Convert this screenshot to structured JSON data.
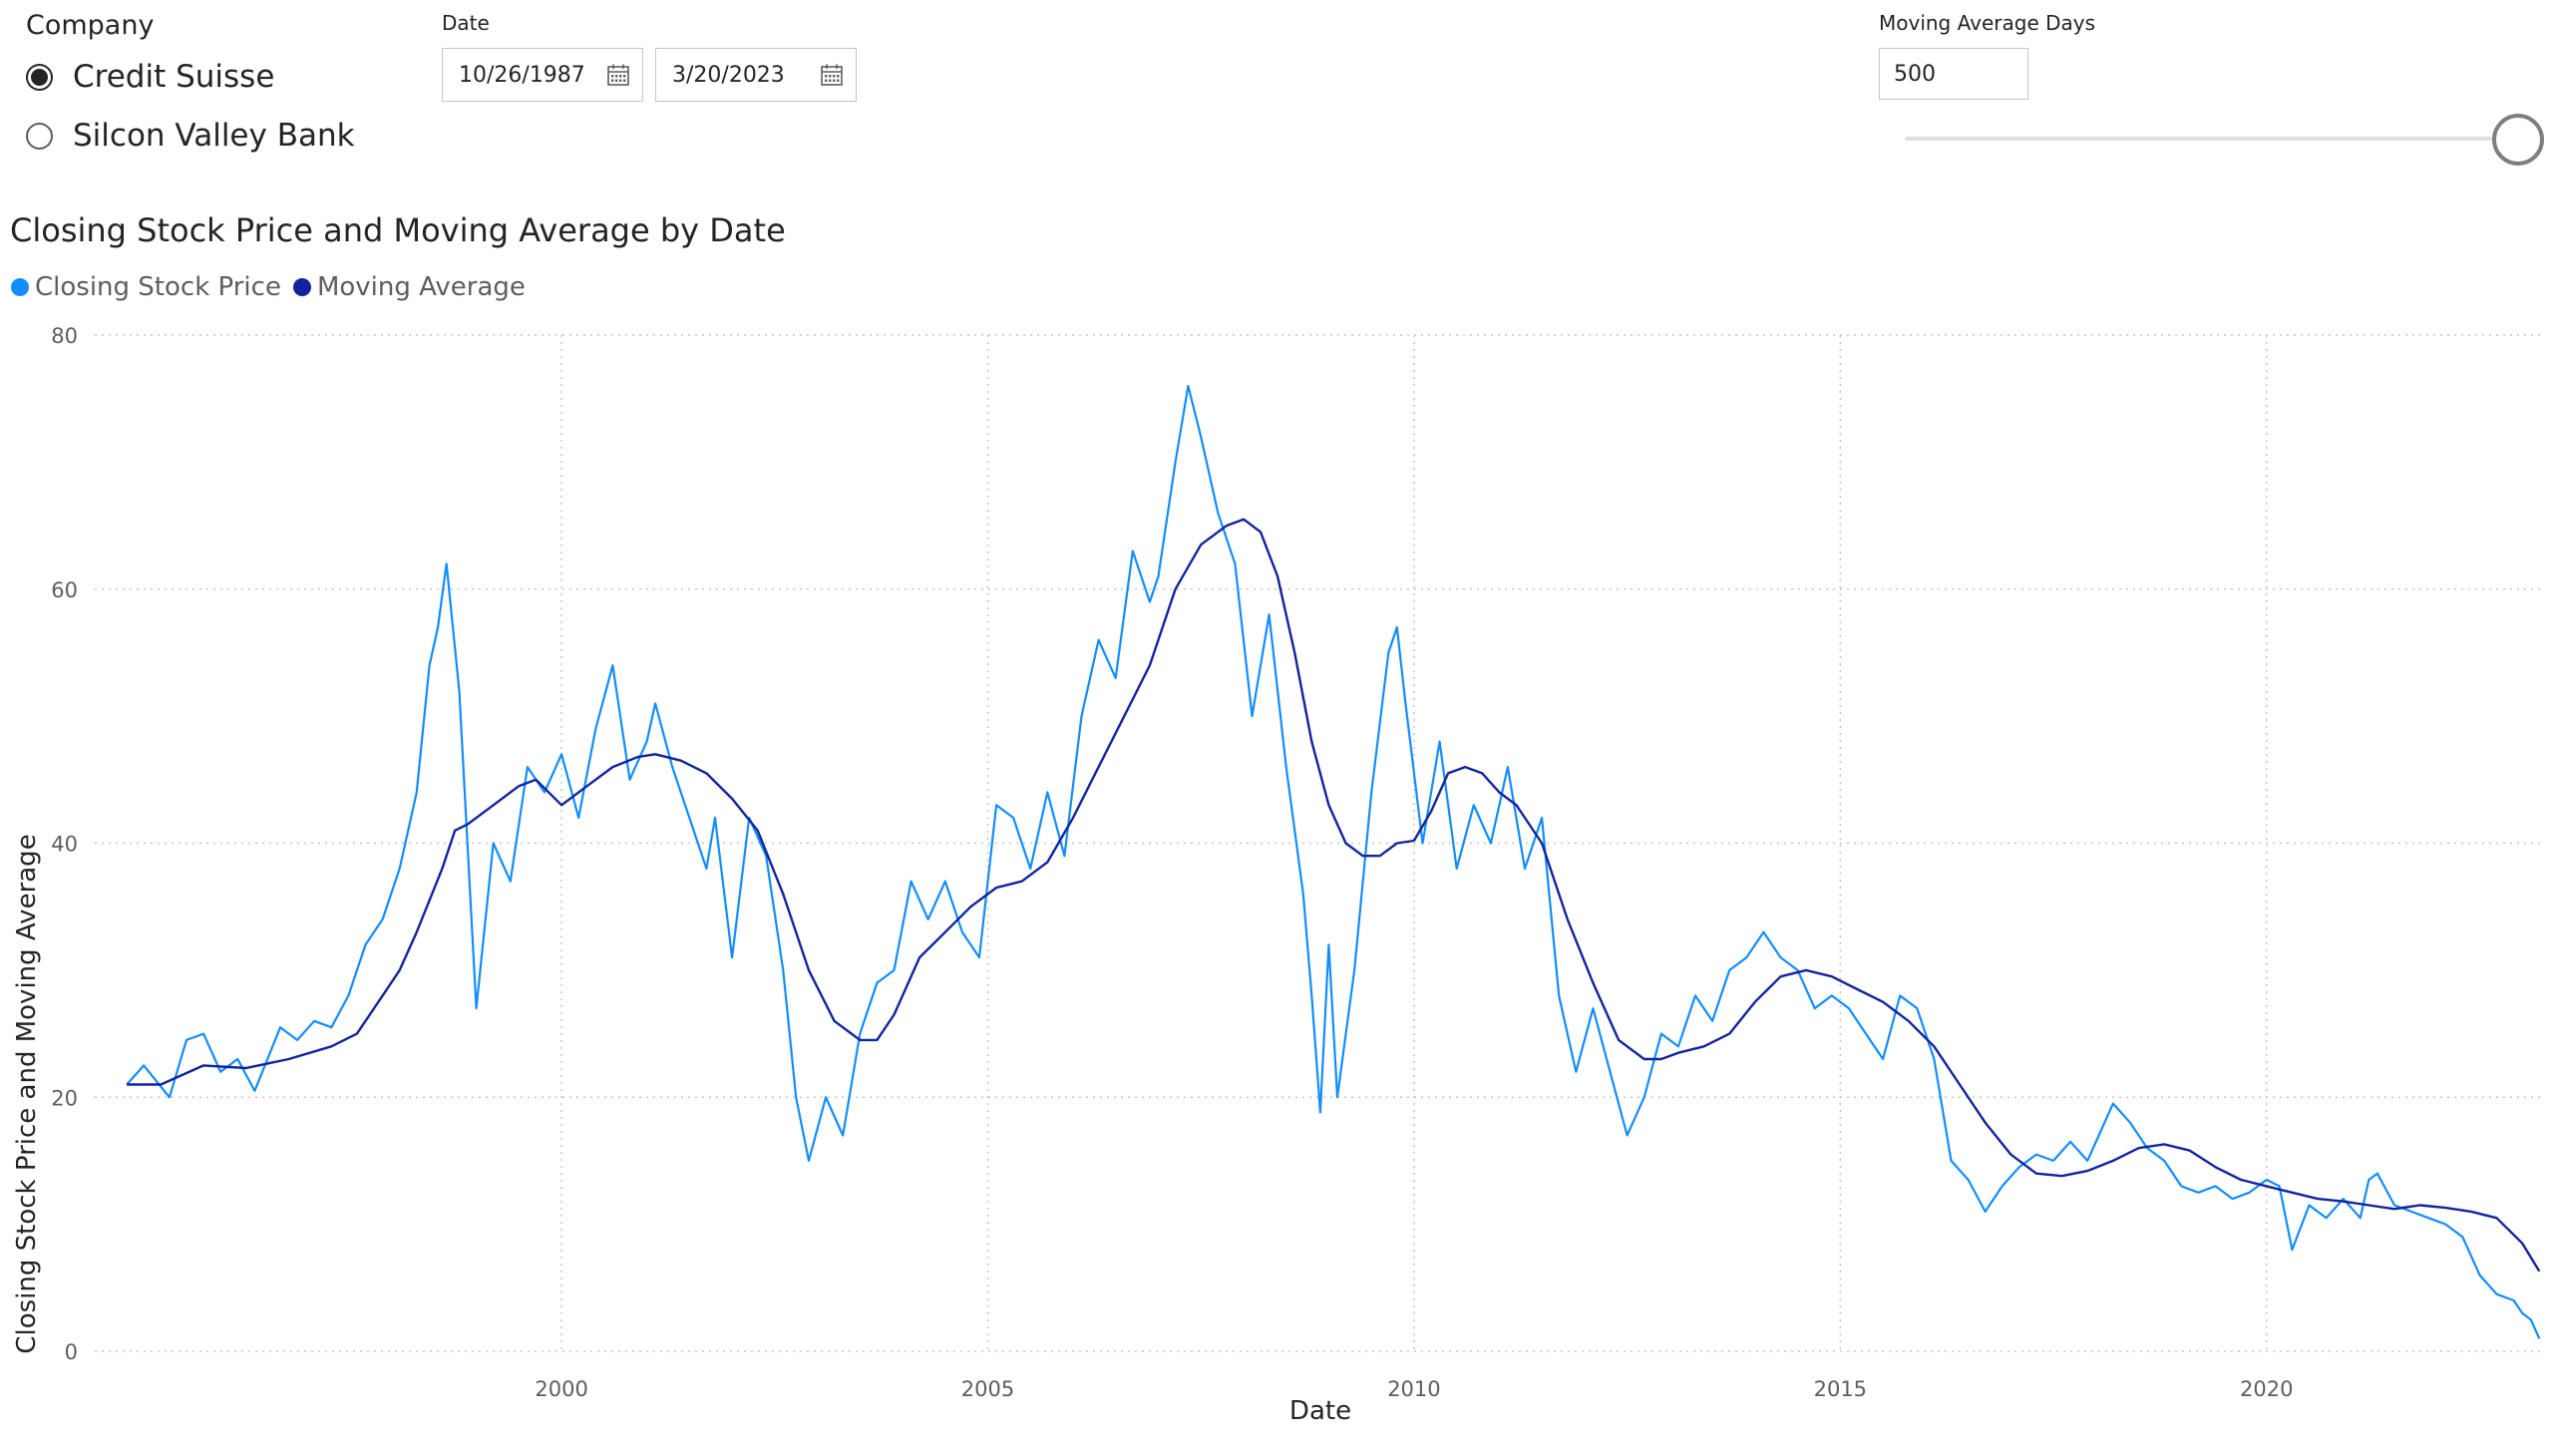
{
  "company_slicer": {
    "title": "Company",
    "options": [
      {
        "label": "Credit Suisse",
        "selected": true
      },
      {
        "label": "Silcon Valley Bank",
        "selected": false
      }
    ]
  },
  "date_slicer": {
    "title": "Date",
    "start": "10/26/1987",
    "end": "3/20/2023",
    "icon": "calendar-icon"
  },
  "moving_average_slicer": {
    "title": "Moving Average Days",
    "value": "500",
    "slider_position": 1.0
  },
  "chart_data": {
    "type": "line",
    "title": "Closing Stock Price and Moving Average by Date",
    "xlabel": "Date",
    "ylabel": "Closing Stock Price and Moving Average",
    "xlim": [
      1994.84,
      2023.22
    ],
    "ylim": [
      0,
      80
    ],
    "x_ticks": [
      2000,
      2005,
      2010,
      2015,
      2020
    ],
    "y_ticks": [
      0,
      20,
      40,
      60,
      80
    ],
    "grid": true,
    "legend_position": "top-left",
    "series": [
      {
        "name": "Closing Stock Price",
        "color": "#118DFF",
        "x": [
          1994.9,
          1995.1,
          1995.4,
          1995.6,
          1995.8,
          1996.0,
          1996.2,
          1996.4,
          1996.7,
          1996.9,
          1997.1,
          1997.3,
          1997.5,
          1997.7,
          1997.9,
          1998.1,
          1998.3,
          1998.45,
          1998.55,
          1998.65,
          1998.8,
          1999.0,
          1999.2,
          1999.4,
          1999.6,
          1999.8,
          2000.0,
          2000.2,
          2000.4,
          2000.6,
          2000.8,
          2001.0,
          2001.1,
          2001.3,
          2001.5,
          2001.7,
          2001.8,
          2002.0,
          2002.2,
          2002.4,
          2002.6,
          2002.75,
          2002.9,
          2003.1,
          2003.3,
          2003.5,
          2003.7,
          2003.9,
          2004.1,
          2004.3,
          2004.5,
          2004.7,
          2004.9,
          2005.1,
          2005.3,
          2005.5,
          2005.7,
          2005.9,
          2006.1,
          2006.3,
          2006.5,
          2006.7,
          2006.9,
          2007.0,
          2007.2,
          2007.35,
          2007.5,
          2007.7,
          2007.9,
          2008.1,
          2008.3,
          2008.5,
          2008.7,
          2008.8,
          2008.9,
          2009.0,
          2009.1,
          2009.3,
          2009.5,
          2009.7,
          2009.8,
          2009.9,
          2010.1,
          2010.3,
          2010.5,
          2010.7,
          2010.9,
          2011.1,
          2011.3,
          2011.5,
          2011.7,
          2011.9,
          2012.1,
          2012.3,
          2012.5,
          2012.7,
          2012.9,
          2013.1,
          2013.3,
          2013.5,
          2013.7,
          2013.9,
          2014.1,
          2014.3,
          2014.5,
          2014.7,
          2014.9,
          2015.1,
          2015.3,
          2015.5,
          2015.7,
          2015.9,
          2016.1,
          2016.3,
          2016.5,
          2016.7,
          2016.9,
          2017.1,
          2017.3,
          2017.5,
          2017.7,
          2017.9,
          2018.0,
          2018.2,
          2018.4,
          2018.6,
          2018.8,
          2019.0,
          2019.2,
          2019.4,
          2019.6,
          2019.8,
          2020.0,
          2020.15,
          2020.3,
          2020.5,
          2020.7,
          2020.9,
          2021.1,
          2021.2,
          2021.3,
          2021.5,
          2021.7,
          2021.9,
          2022.1,
          2022.3,
          2022.5,
          2022.7,
          2022.9,
          2023.0,
          2023.1,
          2023.2
        ],
        "y": [
          21.0,
          22.5,
          20.0,
          24.5,
          25.0,
          22.0,
          23.0,
          20.5,
          25.5,
          24.5,
          26.0,
          25.5,
          28.0,
          32.0,
          34.0,
          38.0,
          44.0,
          54.0,
          57.0,
          62.0,
          52.0,
          27.0,
          40.0,
          37.0,
          46.0,
          44.0,
          47.0,
          42.0,
          49.0,
          54.0,
          45.0,
          48.0,
          51.0,
          46.0,
          42.0,
          38.0,
          42.0,
          31.0,
          42.0,
          39.0,
          30.0,
          20.0,
          15.0,
          20.0,
          17.0,
          25.0,
          29.0,
          30.0,
          37.0,
          34.0,
          37.0,
          33.0,
          31.0,
          43.0,
          42.0,
          38.0,
          44.0,
          39.0,
          50.0,
          56.0,
          53.0,
          63.0,
          59.0,
          61.0,
          70.0,
          76.0,
          72.0,
          66.0,
          62.0,
          50.0,
          58.0,
          46.0,
          36.0,
          28.0,
          18.8,
          32.0,
          20.0,
          30.0,
          44.0,
          55.0,
          57.0,
          51.0,
          40.0,
          48.0,
          38.0,
          43.0,
          40.0,
          46.0,
          38.0,
          42.0,
          28.0,
          22.0,
          27.0,
          22.0,
          17.0,
          20.0,
          25.0,
          24.0,
          28.0,
          26.0,
          30.0,
          31.0,
          33.0,
          31.0,
          30.0,
          27.0,
          28.0,
          27.0,
          25.0,
          23.0,
          28.0,
          27.0,
          23.0,
          15.0,
          13.5,
          11.0,
          13.0,
          14.5,
          15.5,
          15.0,
          16.5,
          15.0,
          16.5,
          19.5,
          18.0,
          16.0,
          15.0,
          13.0,
          12.5,
          13.0,
          12.0,
          12.5,
          13.5,
          13.0,
          8.0,
          11.5,
          10.5,
          12.0,
          10.5,
          13.5,
          14.0,
          11.5,
          11.0,
          10.5,
          10.0,
          9.0,
          6.0,
          4.5,
          4.0,
          3.0,
          2.5,
          1.0
        ]
      },
      {
        "name": "Moving Average",
        "color": "#12239E",
        "x": [
          1994.9,
          1995.3,
          1995.8,
          1996.3,
          1996.8,
          1997.3,
          1997.6,
          1997.9,
          1998.1,
          1998.3,
          1998.6,
          1998.75,
          1998.9,
          1999.1,
          1999.3,
          1999.5,
          1999.7,
          2000.0,
          2000.3,
          2000.6,
          2000.9,
          2001.1,
          2001.4,
          2001.7,
          2002.0,
          2002.3,
          2002.6,
          2002.9,
          2003.2,
          2003.5,
          2003.7,
          2003.9,
          2004.2,
          2004.5,
          2004.8,
          2005.1,
          2005.4,
          2005.7,
          2006.0,
          2006.3,
          2006.6,
          2006.9,
          2007.2,
          2007.5,
          2007.8,
          2008.0,
          2008.2,
          2008.4,
          2008.6,
          2008.8,
          2009.0,
          2009.2,
          2009.4,
          2009.6,
          2009.8,
          2010.0,
          2010.2,
          2010.4,
          2010.6,
          2010.8,
          2011.0,
          2011.2,
          2011.5,
          2011.8,
          2012.1,
          2012.4,
          2012.7,
          2012.9,
          2013.1,
          2013.4,
          2013.7,
          2014.0,
          2014.3,
          2014.6,
          2014.9,
          2015.2,
          2015.5,
          2015.8,
          2016.1,
          2016.4,
          2016.7,
          2017.0,
          2017.3,
          2017.6,
          2017.9,
          2018.2,
          2018.5,
          2018.8,
          2019.1,
          2019.4,
          2019.7,
          2020.0,
          2020.3,
          2020.6,
          2020.9,
          2021.2,
          2021.5,
          2021.8,
          2022.1,
          2022.4,
          2022.7,
          2023.0,
          2023.2
        ],
        "y": [
          21.0,
          21.0,
          22.5,
          22.3,
          23.0,
          24.0,
          25.0,
          28.0,
          30.0,
          33.0,
          38.0,
          41.0,
          41.5,
          42.5,
          43.5,
          44.5,
          45.0,
          43.0,
          44.5,
          46.0,
          46.8,
          47.0,
          46.5,
          45.5,
          43.5,
          41.0,
          36.0,
          30.0,
          26.0,
          24.5,
          24.5,
          26.5,
          31.0,
          33.0,
          35.0,
          36.5,
          37.0,
          38.5,
          42.0,
          46.0,
          50.0,
          54.0,
          60.0,
          63.5,
          65.0,
          65.5,
          64.5,
          61.0,
          55.0,
          48.0,
          43.0,
          40.0,
          39.0,
          39.0,
          40.0,
          40.2,
          42.5,
          45.5,
          46.0,
          45.5,
          44.0,
          43.0,
          40.0,
          34.0,
          29.0,
          24.5,
          23.0,
          23.0,
          23.5,
          24.0,
          25.0,
          27.5,
          29.5,
          30.0,
          29.5,
          28.5,
          27.5,
          26.0,
          24.0,
          21.0,
          18.0,
          15.5,
          14.0,
          13.8,
          14.2,
          15.0,
          16.0,
          16.3,
          15.8,
          14.5,
          13.5,
          13.0,
          12.5,
          12.0,
          11.8,
          11.5,
          11.2,
          11.5,
          11.3,
          11.0,
          10.5,
          8.5,
          6.3
        ]
      }
    ]
  }
}
